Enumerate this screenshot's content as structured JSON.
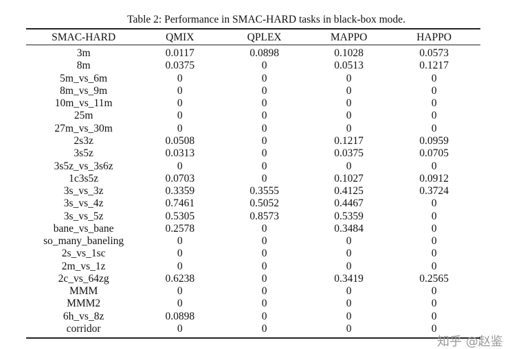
{
  "caption": "Table 2: Performance in SMAC-HARD tasks in black-box mode.",
  "columns": [
    "SMAC-HARD",
    "QMIX",
    "QPLEX",
    "MAPPO",
    "HAPPO"
  ],
  "rows": [
    [
      "3m",
      "0.0117",
      "0.0898",
      "0.1028",
      "0.0573"
    ],
    [
      "8m",
      "0.0375",
      "0",
      "0.0513",
      "0.1217"
    ],
    [
      "5m_vs_6m",
      "0",
      "0",
      "0",
      "0"
    ],
    [
      "8m_vs_9m",
      "0",
      "0",
      "0",
      "0"
    ],
    [
      "10m_vs_11m",
      "0",
      "0",
      "0",
      "0"
    ],
    [
      "25m",
      "0",
      "0",
      "0",
      "0"
    ],
    [
      "27m_vs_30m",
      "0",
      "0",
      "0",
      "0"
    ],
    [
      "2s3z",
      "0.0508",
      "0",
      "0.1217",
      "0.0959"
    ],
    [
      "3s5z",
      "0.0313",
      "0",
      "0.0375",
      "0.0705"
    ],
    [
      "3s5z_vs_3s6z",
      "0",
      "0",
      "0",
      "0"
    ],
    [
      "1c3s5z",
      "0.0703",
      "0",
      "0.1027",
      "0.0912"
    ],
    [
      "3s_vs_3z",
      "0.3359",
      "0.3555",
      "0.4125",
      "0.3724"
    ],
    [
      "3s_vs_4z",
      "0.7461",
      "0.5052",
      "0.4467",
      "0"
    ],
    [
      "3s_vs_5z",
      "0.5305",
      "0.8573",
      "0.5359",
      "0"
    ],
    [
      "bane_vs_bane",
      "0.2578",
      "0",
      "0.3484",
      "0"
    ],
    [
      "so_many_baneling",
      "0",
      "0",
      "0",
      "0"
    ],
    [
      "2s_vs_1sc",
      "0",
      "0",
      "0",
      "0"
    ],
    [
      "2m_vs_1z",
      "0",
      "0",
      "0",
      "0"
    ],
    [
      "2c_vs_64zg",
      "0.6238",
      "0",
      "0.3419",
      "0.2565"
    ],
    [
      "MMM",
      "0",
      "0",
      "0",
      "0"
    ],
    [
      "MMM2",
      "0",
      "0",
      "0",
      "0"
    ],
    [
      "6h_vs_8z",
      "0.0898",
      "0",
      "0",
      "0"
    ],
    [
      "corridor",
      "0",
      "0",
      "0",
      "0"
    ]
  ],
  "watermark": "知乎 @赵鉴"
}
